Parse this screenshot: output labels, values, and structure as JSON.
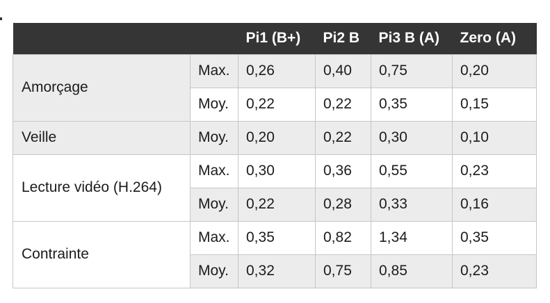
{
  "colors": {
    "header_bg": "#353535",
    "header_text": "#ffffff",
    "stripe_bg": "#ececec",
    "border": "#c6c6c6",
    "text": "#1b1b1b"
  },
  "table": {
    "header": [
      "Pi1 (B+)",
      "Pi2 B",
      "Pi3 B (A)",
      "Zero (A)"
    ],
    "groups": [
      {
        "label": "Amorçage",
        "rows": [
          {
            "stat": "Max.",
            "values": [
              "0,26",
              "0,40",
              "0,75",
              "0,20"
            ]
          },
          {
            "stat": "Moy.",
            "values": [
              "0,22",
              "0,22",
              "0,35",
              "0,15"
            ]
          }
        ]
      },
      {
        "label": "Veille",
        "rows": [
          {
            "stat": "Moy.",
            "values": [
              "0,20",
              "0,22",
              "0,30",
              "0,10"
            ]
          }
        ]
      },
      {
        "label": "Lecture vidéo (H.264)",
        "rows": [
          {
            "stat": "Max.",
            "values": [
              "0,30",
              "0,36",
              "0,55",
              "0,23"
            ]
          },
          {
            "stat": "Moy.",
            "values": [
              "0,22",
              "0,28",
              "0,33",
              "0,16"
            ]
          }
        ]
      },
      {
        "label": "Contrainte",
        "rows": [
          {
            "stat": "Max.",
            "values": [
              "0,35",
              "0,82",
              "1,34",
              "0,35"
            ]
          },
          {
            "stat": "Moy.",
            "values": [
              "0,32",
              "0,75",
              "0,85",
              "0,23"
            ]
          }
        ]
      }
    ]
  },
  "chart_data": {
    "type": "table",
    "columns": [
      "",
      "",
      "Pi1 (B+)",
      "Pi2 B",
      "Pi3 B (A)",
      "Zero (A)"
    ],
    "rows": [
      [
        "Amorçage",
        "Max.",
        "0,26",
        "0,40",
        "0,75",
        "0,20"
      ],
      [
        "Amorçage",
        "Moy.",
        "0,22",
        "0,22",
        "0,35",
        "0,15"
      ],
      [
        "Veille",
        "Moy.",
        "0,20",
        "0,22",
        "0,30",
        "0,10"
      ],
      [
        "Lecture vidéo (H.264)",
        "Max.",
        "0,30",
        "0,36",
        "0,55",
        "0,23"
      ],
      [
        "Lecture vidéo (H.264)",
        "Moy.",
        "0,22",
        "0,28",
        "0,33",
        "0,16"
      ],
      [
        "Contrainte",
        "Max.",
        "0,35",
        "0,82",
        "1,34",
        "0,35"
      ],
      [
        "Contrainte",
        "Moy.",
        "0,32",
        "0,75",
        "0,85",
        "0,23"
      ]
    ]
  }
}
